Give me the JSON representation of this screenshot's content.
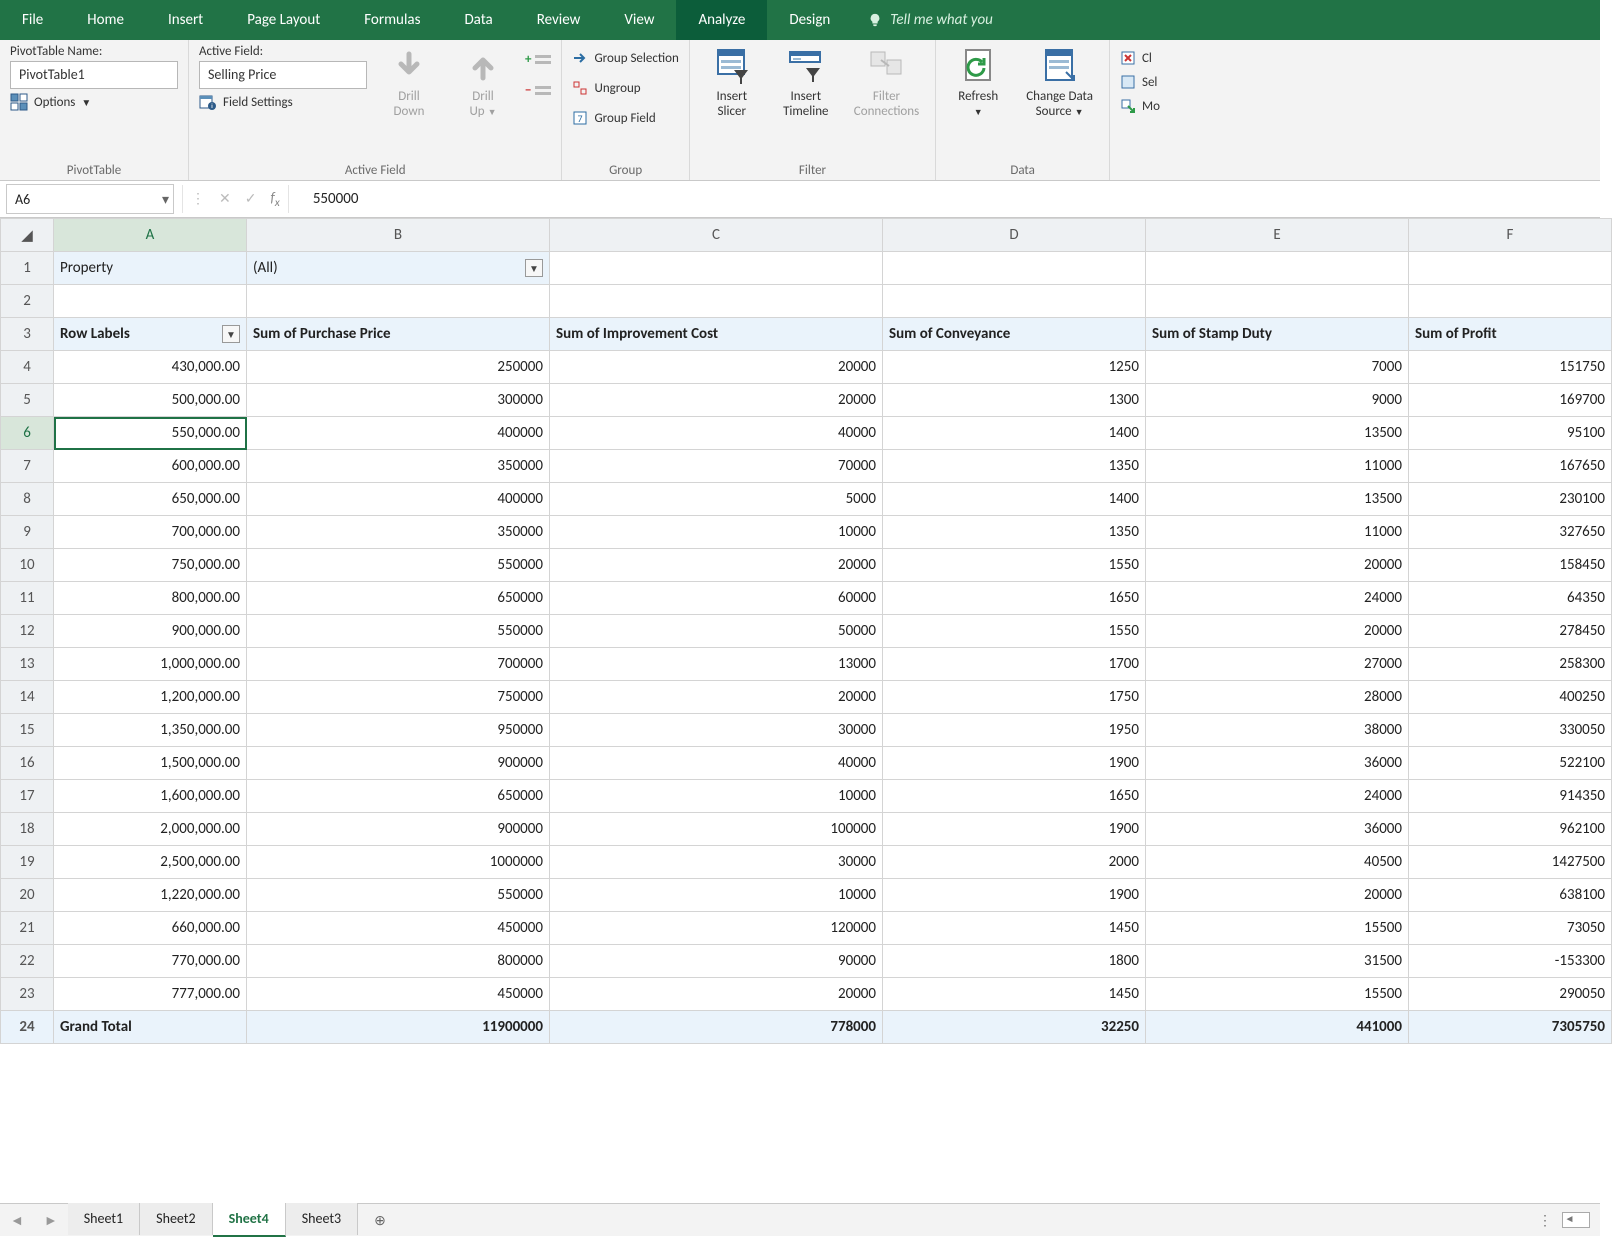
{
  "tabs": {
    "file": "File",
    "home": "Home",
    "insert": "Insert",
    "page_layout": "Page Layout",
    "formulas": "Formulas",
    "data": "Data",
    "review": "Review",
    "view": "View",
    "analyze": "Analyze",
    "design": "Design",
    "tell": "Tell me what you"
  },
  "ribbon": {
    "pivottable": {
      "label": "PivotTable Name:",
      "value": "PivotTable1",
      "options": "Options",
      "caption": "PivotTable"
    },
    "activefield": {
      "label": "Active Field:",
      "value": "Selling Price",
      "settings": "Field Settings",
      "drilldown": "Drill\nDown",
      "drillup": "Drill\nUp",
      "caption": "Active Field"
    },
    "group": {
      "selection": "Group Selection",
      "ungroup": "Ungroup",
      "field": "Group Field",
      "caption": "Group"
    },
    "filter": {
      "slicer": "Insert\nSlicer",
      "timeline": "Insert\nTimeline",
      "connections": "Filter\nConnections",
      "caption": "Filter"
    },
    "data": {
      "refresh": "Refresh",
      "source": "Change Data\nSource",
      "caption": "Data"
    },
    "actions": {
      "clear": "Cl",
      "select": "Sel",
      "move": "Mo"
    }
  },
  "formula_bar": {
    "cell": "A6",
    "value": "550000"
  },
  "pivot": {
    "filter_field": "Property",
    "filter_value": "(All)",
    "headers": [
      "Row Labels",
      "Sum of Purchase Price",
      "Sum of Improvement Cost",
      "Sum of Conveyance",
      "Sum of Stamp Duty",
      "Sum of Profit"
    ],
    "rows": [
      [
        "430,000.00",
        "250000",
        "20000",
        "1250",
        "7000",
        "151750"
      ],
      [
        "500,000.00",
        "300000",
        "20000",
        "1300",
        "9000",
        "169700"
      ],
      [
        "550,000.00",
        "400000",
        "40000",
        "1400",
        "13500",
        "95100"
      ],
      [
        "600,000.00",
        "350000",
        "70000",
        "1350",
        "11000",
        "167650"
      ],
      [
        "650,000.00",
        "400000",
        "5000",
        "1400",
        "13500",
        "230100"
      ],
      [
        "700,000.00",
        "350000",
        "10000",
        "1350",
        "11000",
        "327650"
      ],
      [
        "750,000.00",
        "550000",
        "20000",
        "1550",
        "20000",
        "158450"
      ],
      [
        "800,000.00",
        "650000",
        "60000",
        "1650",
        "24000",
        "64350"
      ],
      [
        "900,000.00",
        "550000",
        "50000",
        "1550",
        "20000",
        "278450"
      ],
      [
        "1,000,000.00",
        "700000",
        "13000",
        "1700",
        "27000",
        "258300"
      ],
      [
        "1,200,000.00",
        "750000",
        "20000",
        "1750",
        "28000",
        "400250"
      ],
      [
        "1,350,000.00",
        "950000",
        "30000",
        "1950",
        "38000",
        "330050"
      ],
      [
        "1,500,000.00",
        "900000",
        "40000",
        "1900",
        "36000",
        "522100"
      ],
      [
        "1,600,000.00",
        "650000",
        "10000",
        "1650",
        "24000",
        "914350"
      ],
      [
        "2,000,000.00",
        "900000",
        "100000",
        "1900",
        "36000",
        "962100"
      ],
      [
        "2,500,000.00",
        "1000000",
        "30000",
        "2000",
        "40500",
        "1427500"
      ],
      [
        "1,220,000.00",
        "550000",
        "10000",
        "1900",
        "20000",
        "638100"
      ],
      [
        "660,000.00",
        "450000",
        "120000",
        "1450",
        "15500",
        "73050"
      ],
      [
        "770,000.00",
        "800000",
        "90000",
        "1800",
        "31500",
        "-153300"
      ],
      [
        "777,000.00",
        "450000",
        "20000",
        "1450",
        "15500",
        "290050"
      ]
    ],
    "total": [
      "Grand Total",
      "11900000",
      "778000",
      "32250",
      "441000",
      "7305750"
    ]
  },
  "columns": [
    "A",
    "B",
    "C",
    "D",
    "E",
    "F"
  ],
  "selection": {
    "row": 6,
    "col": 0
  },
  "sheets": {
    "list": [
      "Sheet1",
      "Sheet2",
      "Sheet4",
      "Sheet3"
    ],
    "active": "Sheet4"
  }
}
